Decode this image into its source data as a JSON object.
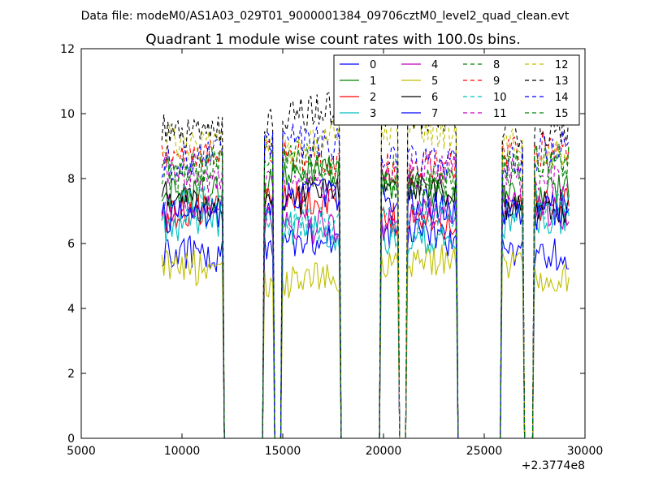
{
  "header": {
    "data_file": "Data file: modeM0/AS1A03_029T01_9000001384_09706cztM0_level2_quad_clean.evt"
  },
  "chart_data": {
    "type": "line",
    "title": "Quadrant 1 module wise count rates with 100.0s bins.",
    "xlabel": "",
    "ylabel": "",
    "x_offset_label": "+2.3774e8",
    "xlim": [
      5000,
      30000
    ],
    "ylim": [
      0,
      12
    ],
    "x_ticks": [
      5000,
      10000,
      15000,
      20000,
      25000,
      30000
    ],
    "x_tick_labels": [
      "5000",
      "10000",
      "15000",
      "20000",
      "25000",
      "30000"
    ],
    "y_ticks": [
      0,
      2,
      4,
      6,
      8,
      10,
      12
    ],
    "y_tick_labels": [
      "0",
      "2",
      "4",
      "6",
      "8",
      "10",
      "12"
    ],
    "grid": false,
    "legend_position": "top-right",
    "bin_seconds": 100,
    "segments_note": "Each module series: ~0 outside on-source intervals, noisy rate within intervals",
    "on_intervals": [
      [
        9000,
        12000
      ],
      [
        14100,
        14500
      ],
      [
        15000,
        17800
      ],
      [
        19900,
        20700
      ],
      [
        21200,
        23600
      ],
      [
        25900,
        26900
      ],
      [
        27500,
        29200
      ]
    ],
    "series": [
      {
        "name": "0",
        "color": "#0000ff",
        "dash": "solid",
        "mean_rate": 6.0
      },
      {
        "name": "1",
        "color": "#008000",
        "dash": "solid",
        "mean_rate": 7.8
      },
      {
        "name": "2",
        "color": "#ff0000",
        "dash": "solid",
        "mean_rate": 7.0
      },
      {
        "name": "3",
        "color": "#00bfbf",
        "dash": "solid",
        "mean_rate": 6.4
      },
      {
        "name": "4",
        "color": "#bf00bf",
        "dash": "solid",
        "mean_rate": 6.8
      },
      {
        "name": "5",
        "color": "#bfbf00",
        "dash": "solid",
        "mean_rate": 5.2
      },
      {
        "name": "6",
        "color": "#000000",
        "dash": "solid",
        "mean_rate": 7.5
      },
      {
        "name": "7",
        "color": "#0000ff",
        "dash": "solid",
        "mean_rate": 7.2
      },
      {
        "name": "8",
        "color": "#008000",
        "dash": "dashed",
        "mean_rate": 8.4
      },
      {
        "name": "9",
        "color": "#ff0000",
        "dash": "dashed",
        "mean_rate": 8.6
      },
      {
        "name": "10",
        "color": "#00bfbf",
        "dash": "dashed",
        "mean_rate": 6.9
      },
      {
        "name": "11",
        "color": "#bf00bf",
        "dash": "dashed",
        "mean_rate": 8.0
      },
      {
        "name": "12",
        "color": "#bfbf00",
        "dash": "dashed",
        "mean_rate": 9.2
      },
      {
        "name": "13",
        "color": "#000000",
        "dash": "dashed",
        "mean_rate": 9.8
      },
      {
        "name": "14",
        "color": "#0000ff",
        "dash": "dashed",
        "mean_rate": 8.8
      },
      {
        "name": "15",
        "color": "#008000",
        "dash": "dashed",
        "mean_rate": 8.2
      }
    ]
  }
}
